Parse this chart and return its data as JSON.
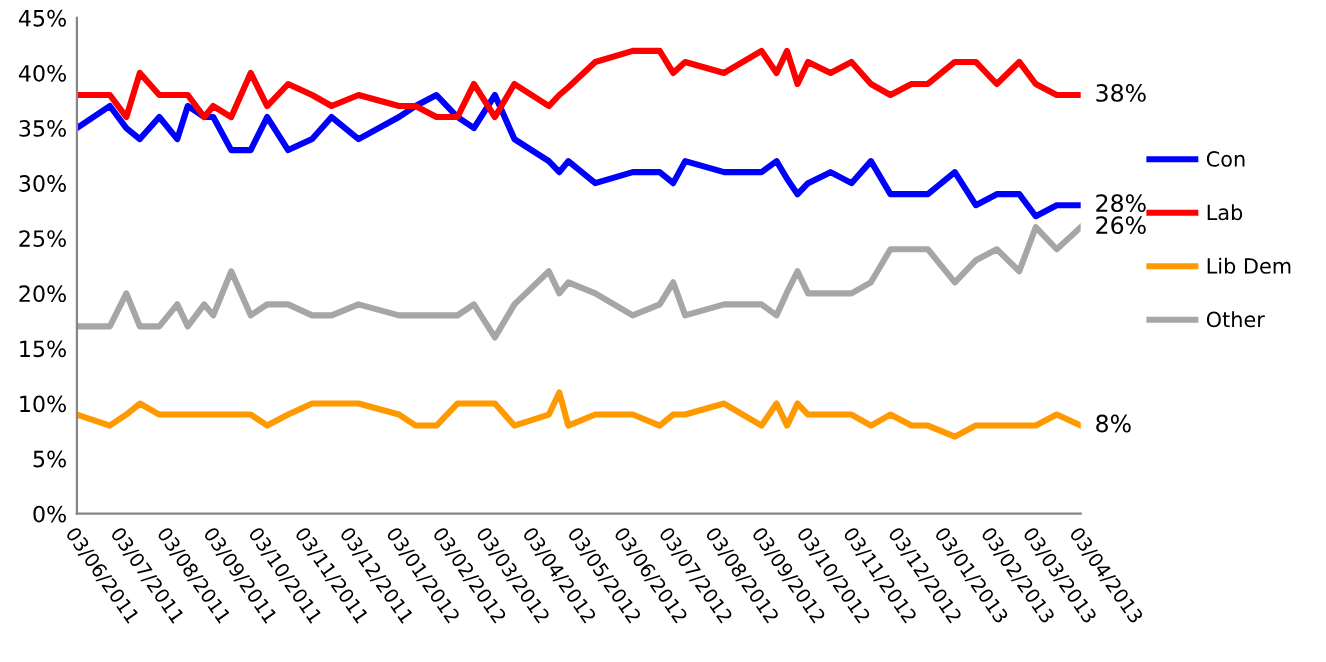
{
  "chart_data": {
    "type": "line",
    "x": [
      "2011-06-03",
      "2011-06-25",
      "2011-07-06",
      "2011-07-15",
      "2011-07-28",
      "2011-08-09",
      "2011-08-16",
      "2011-08-27",
      "2011-09-02",
      "2011-09-14",
      "2011-09-27",
      "2011-10-08",
      "2011-10-22",
      "2011-11-07",
      "2011-11-20",
      "2011-12-08",
      "2012-01-04",
      "2012-01-15",
      "2012-01-29",
      "2012-02-12",
      "2012-02-23",
      "2012-03-08",
      "2012-03-21",
      "2012-04-13",
      "2012-04-20",
      "2012-04-26",
      "2012-05-14",
      "2012-06-08",
      "2012-06-26",
      "2012-07-05",
      "2012-07-13",
      "2012-08-08",
      "2012-09-02",
      "2012-09-12",
      "2012-09-19",
      "2012-09-26",
      "2012-10-03",
      "2012-10-18",
      "2012-11-01",
      "2012-11-14",
      "2012-11-27",
      "2012-12-11",
      "2012-12-22",
      "2013-01-09",
      "2013-01-23",
      "2013-02-06",
      "2013-02-21",
      "2013-03-04",
      "2013-03-18",
      "2013-04-03"
    ],
    "series": [
      {
        "name": "Con",
        "color": "#0000ff",
        "values": [
          35,
          37,
          35,
          34,
          36,
          34,
          37,
          36,
          36,
          33,
          33,
          36,
          33,
          34,
          36,
          34,
          36,
          37,
          38,
          36,
          35,
          38,
          34,
          32,
          31,
          32,
          30,
          31,
          31,
          30,
          32,
          31,
          31,
          32,
          30.4,
          29,
          30,
          31,
          30,
          32,
          29,
          29,
          29,
          31,
          28,
          29,
          29,
          27,
          28,
          28
        ]
      },
      {
        "name": "Lab",
        "color": "#ff0000",
        "values": [
          38,
          38,
          36,
          40,
          38,
          38,
          38,
          36,
          37,
          36,
          40,
          37,
          39,
          38,
          37,
          38,
          37,
          37,
          36,
          36,
          39,
          36,
          39,
          37,
          38,
          38.7,
          41,
          42,
          42,
          40,
          41,
          40,
          42,
          40,
          42,
          39,
          41,
          40,
          41,
          39,
          38,
          39,
          39,
          41,
          41,
          39,
          41,
          39,
          38,
          38
        ]
      },
      {
        "name": "Lib Dem",
        "color": "#ff9900",
        "values": [
          9,
          8,
          9,
          10,
          9,
          9,
          9,
          9,
          9,
          9,
          9,
          8,
          9,
          10,
          10,
          10,
          9,
          8,
          8,
          10,
          10,
          10,
          8,
          9,
          11,
          8,
          9,
          9,
          8,
          9,
          9,
          10,
          8,
          10,
          8,
          10,
          9,
          9,
          9,
          8,
          9,
          8,
          8,
          7,
          8,
          8,
          8,
          8,
          9,
          8
        ]
      },
      {
        "name": "Other",
        "color": "#a6a6a6",
        "values": [
          17,
          17,
          20,
          17,
          17,
          19,
          17,
          19,
          18,
          22,
          18,
          19,
          19,
          18,
          18,
          19,
          18,
          18,
          18,
          18,
          19,
          16,
          19,
          22,
          20,
          21,
          20,
          18,
          19,
          21,
          18,
          19,
          19,
          18,
          20.1,
          22,
          20,
          20,
          20,
          21,
          24,
          24,
          24,
          21,
          23,
          24,
          22,
          26,
          24,
          26
        ]
      }
    ],
    "xlim": [
      "2011-06-03",
      "2013-04-03"
    ],
    "xticks": [
      {
        "value": "2011-06-03",
        "label": "03/06/2011"
      },
      {
        "value": "2011-07-03",
        "label": "03/07/2011"
      },
      {
        "value": "2011-08-03",
        "label": "03/08/2011"
      },
      {
        "value": "2011-09-03",
        "label": "03/09/2011"
      },
      {
        "value": "2011-10-03",
        "label": "03/10/2011"
      },
      {
        "value": "2011-11-03",
        "label": "03/11/2011"
      },
      {
        "value": "2011-12-03",
        "label": "03/12/2011"
      },
      {
        "value": "2012-01-03",
        "label": "03/01/2012"
      },
      {
        "value": "2012-02-03",
        "label": "03/02/2012"
      },
      {
        "value": "2012-03-03",
        "label": "03/03/2012"
      },
      {
        "value": "2012-04-03",
        "label": "03/04/2012"
      },
      {
        "value": "2012-05-03",
        "label": "03/05/2012"
      },
      {
        "value": "2012-06-03",
        "label": "03/06/2012"
      },
      {
        "value": "2012-07-03",
        "label": "03/07/2012"
      },
      {
        "value": "2012-08-03",
        "label": "03/08/2012"
      },
      {
        "value": "2012-09-03",
        "label": "03/09/2012"
      },
      {
        "value": "2012-10-03",
        "label": "03/10/2012"
      },
      {
        "value": "2012-11-03",
        "label": "03/11/2012"
      },
      {
        "value": "2012-12-03",
        "label": "03/12/2012"
      },
      {
        "value": "2013-01-03",
        "label": "03/01/2013"
      },
      {
        "value": "2013-02-03",
        "label": "03/02/2013"
      },
      {
        "value": "2013-03-03",
        "label": "03/03/2013"
      },
      {
        "value": "2013-04-03",
        "label": "03/04/2013"
      }
    ],
    "ylim": [
      0,
      45
    ],
    "yticks": [
      {
        "value": 0,
        "label": "0%"
      },
      {
        "value": 5,
        "label": "5%"
      },
      {
        "value": 10,
        "label": "10%"
      },
      {
        "value": 15,
        "label": "15%"
      },
      {
        "value": 20,
        "label": "20%"
      },
      {
        "value": 25,
        "label": "25%"
      },
      {
        "value": 30,
        "label": "30%"
      },
      {
        "value": 35,
        "label": "35%"
      },
      {
        "value": 40,
        "label": "40%"
      },
      {
        "value": 45,
        "label": "45%"
      }
    ],
    "annotations": [
      {
        "text": "38%",
        "x": "2013-04-03",
        "y": 38
      },
      {
        "text": "28%",
        "x": "2013-04-03",
        "y": 28
      },
      {
        "text": "26%",
        "x": "2013-04-03",
        "y": 26
      },
      {
        "text": "8%",
        "x": "2013-04-03",
        "y": 8
      }
    ],
    "legend": "right",
    "grid": false,
    "marker": "none",
    "line_style": "solid"
  }
}
